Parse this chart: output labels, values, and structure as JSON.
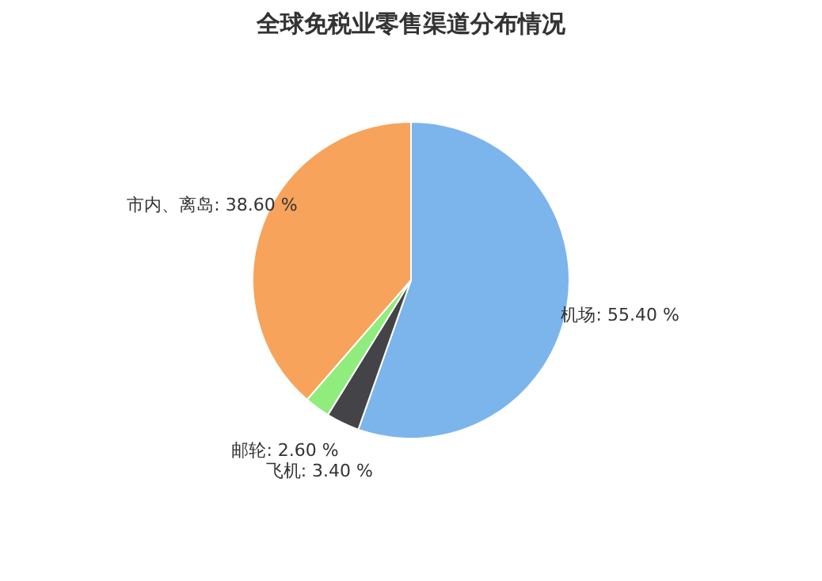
{
  "chart_data": {
    "type": "pie",
    "title": "全球免税业零售渠道分布情况",
    "categories": [
      "机场",
      "飞机",
      "邮轮",
      "市内、离岛"
    ],
    "values": [
      55.4,
      3.4,
      2.6,
      38.6
    ],
    "value_labels": [
      "55.40 %",
      "3.40 %",
      "2.60 %",
      "38.60 %"
    ],
    "colors": [
      "#7cb5ec",
      "#434348",
      "#90ed7d",
      "#f7a35c"
    ],
    "legend": false
  }
}
